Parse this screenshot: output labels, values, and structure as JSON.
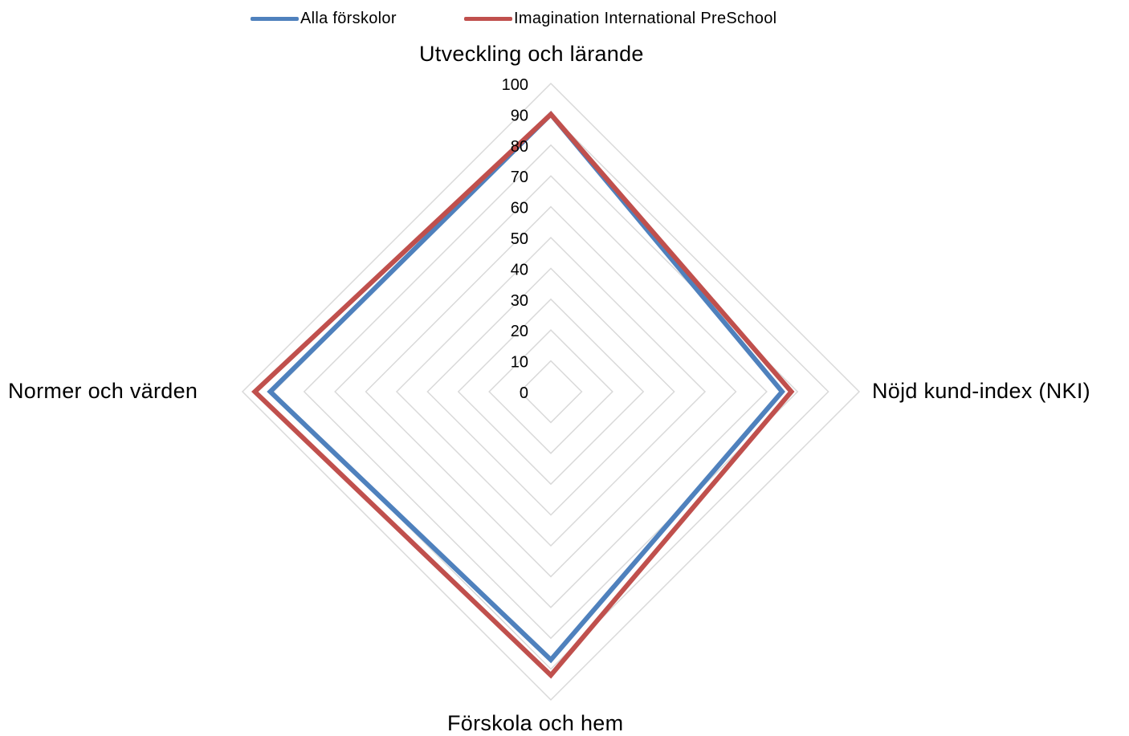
{
  "chart_data": {
    "type": "radar",
    "axes": [
      "Utveckling och lärande",
      "Nöjd kund-index (NKI)",
      "Förskola och hem",
      "Normer och värden"
    ],
    "rlim": [
      0,
      100
    ],
    "ticks": [
      "0",
      "10",
      "20",
      "30",
      "40",
      "50",
      "60",
      "70",
      "80",
      "90",
      "100"
    ],
    "grid": true,
    "legend_position": "top",
    "series": [
      {
        "name": "Alla förskolor",
        "color": "#4F81BD",
        "values": [
          90,
          75,
          87,
          91
        ]
      },
      {
        "name": "Imagination International PreSchool",
        "color": "#C0504D",
        "values": [
          90,
          78,
          92,
          96
        ]
      }
    ]
  }
}
